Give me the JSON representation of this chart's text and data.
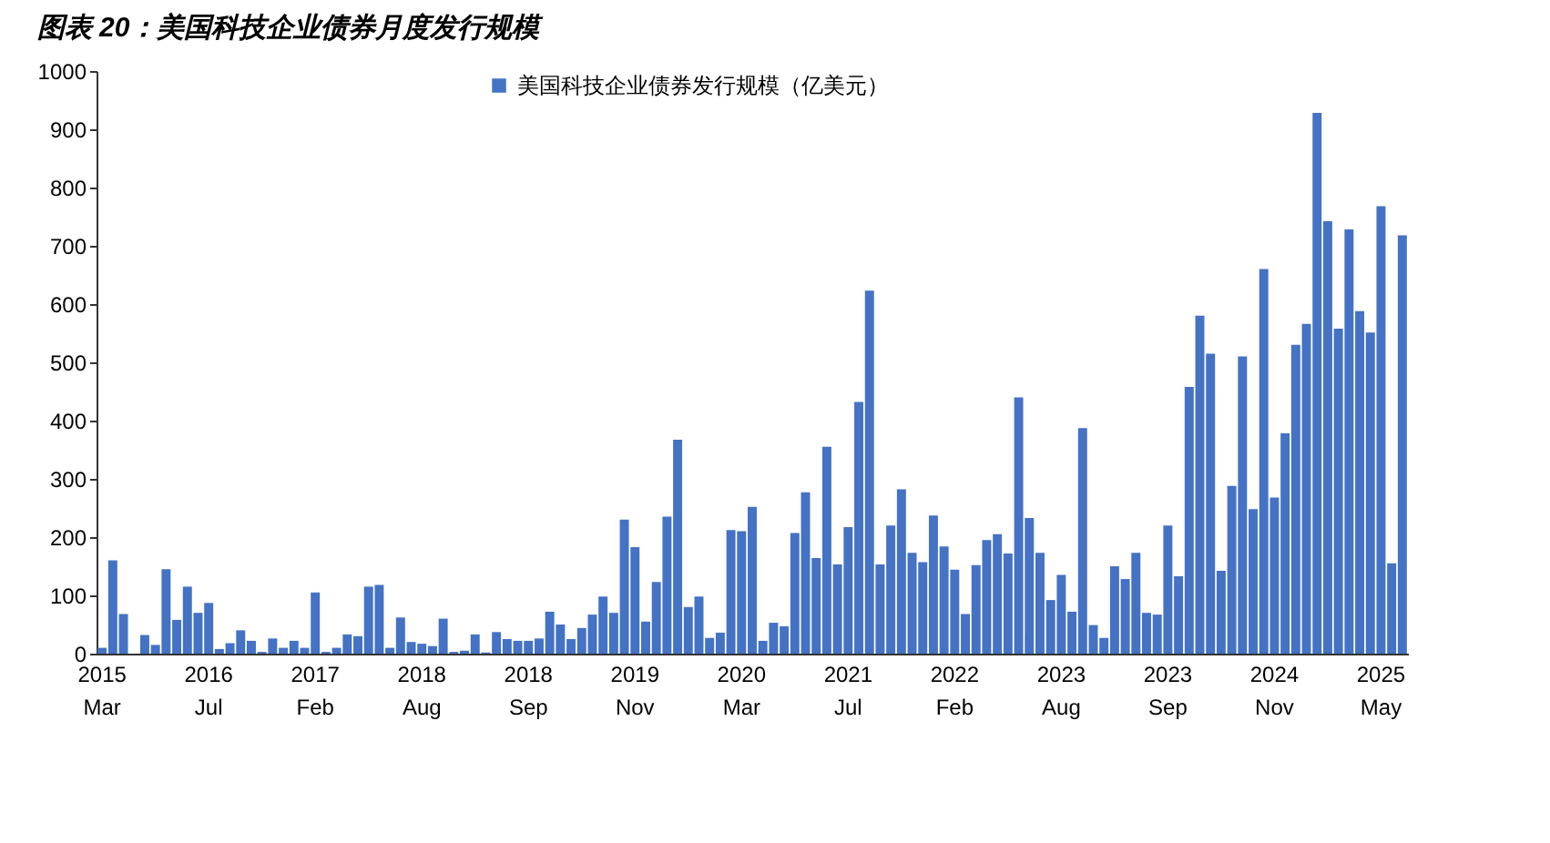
{
  "chart_data": {
    "type": "bar",
    "title": "图表 20：美国科技企业债券月度发行规模",
    "categories": [
      "2015 Mar",
      null,
      null,
      null,
      null,
      null,
      null,
      null,
      null,
      null,
      "2016 Jul",
      null,
      null,
      null,
      null,
      null,
      null,
      null,
      null,
      null,
      "2017 Feb",
      null,
      null,
      null,
      null,
      null,
      null,
      null,
      null,
      null,
      "2018 Aug",
      null,
      null,
      null,
      null,
      null,
      null,
      null,
      null,
      null,
      "2018 Sep",
      null,
      null,
      null,
      null,
      null,
      null,
      null,
      null,
      null,
      "2019 Nov",
      null,
      null,
      null,
      null,
      null,
      null,
      null,
      null,
      null,
      "2020 Mar",
      null,
      null,
      null,
      null,
      null,
      null,
      null,
      null,
      null,
      "2021 Jul",
      null,
      null,
      null,
      null,
      null,
      null,
      null,
      null,
      null,
      "2022 Feb",
      null,
      null,
      null,
      null,
      null,
      null,
      null,
      null,
      null,
      "2023 Aug",
      null,
      null,
      null,
      null,
      null,
      null,
      null,
      null,
      null,
      "2023 Sep",
      null,
      null,
      null,
      null,
      null,
      null,
      null,
      null,
      null,
      "2024 Nov",
      null,
      null,
      null,
      null,
      null,
      null,
      null,
      null,
      null,
      "2025 May",
      null,
      null
    ],
    "series": [
      {
        "name": "美国科技企业债券发行规模（亿美元）",
        "color": "#4472c4",
        "values": [
          10,
          160,
          68,
          0,
          32,
          15,
          145,
          58,
          115,
          70,
          87,
          8,
          18,
          40,
          22,
          3,
          26,
          10,
          22,
          10,
          105,
          3,
          10,
          33,
          30,
          115,
          118,
          10,
          62,
          20,
          17,
          13,
          60,
          3,
          5,
          33,
          2,
          37,
          25,
          22,
          22,
          26,
          72,
          50,
          25,
          44,
          67,
          98,
          70,
          230,
          183,
          55,
          123,
          235,
          367,
          80,
          98,
          27,
          36,
          212,
          210,
          252,
          22,
          53,
          47,
          207,
          277,
          164,
          355,
          153,
          217,
          432,
          623,
          153,
          220,
          282,
          173,
          157,
          237,
          184,
          144,
          68,
          152,
          195,
          205,
          172,
          440,
          233,
          173,
          92,
          135,
          72,
          387,
          49,
          27,
          150,
          128,
          173,
          70,
          67,
          220,
          133,
          458,
          580,
          515,
          142,
          288,
          510,
          248,
          660,
          268,
          378,
          530,
          566,
          928,
          742,
          558,
          728,
          588,
          551,
          768,
          155,
          718
        ]
      }
    ],
    "ylim": [
      0,
      1000
    ],
    "yticks": [
      0,
      100,
      200,
      300,
      400,
      500,
      600,
      700,
      800,
      900,
      1000
    ],
    "legend": "top"
  }
}
